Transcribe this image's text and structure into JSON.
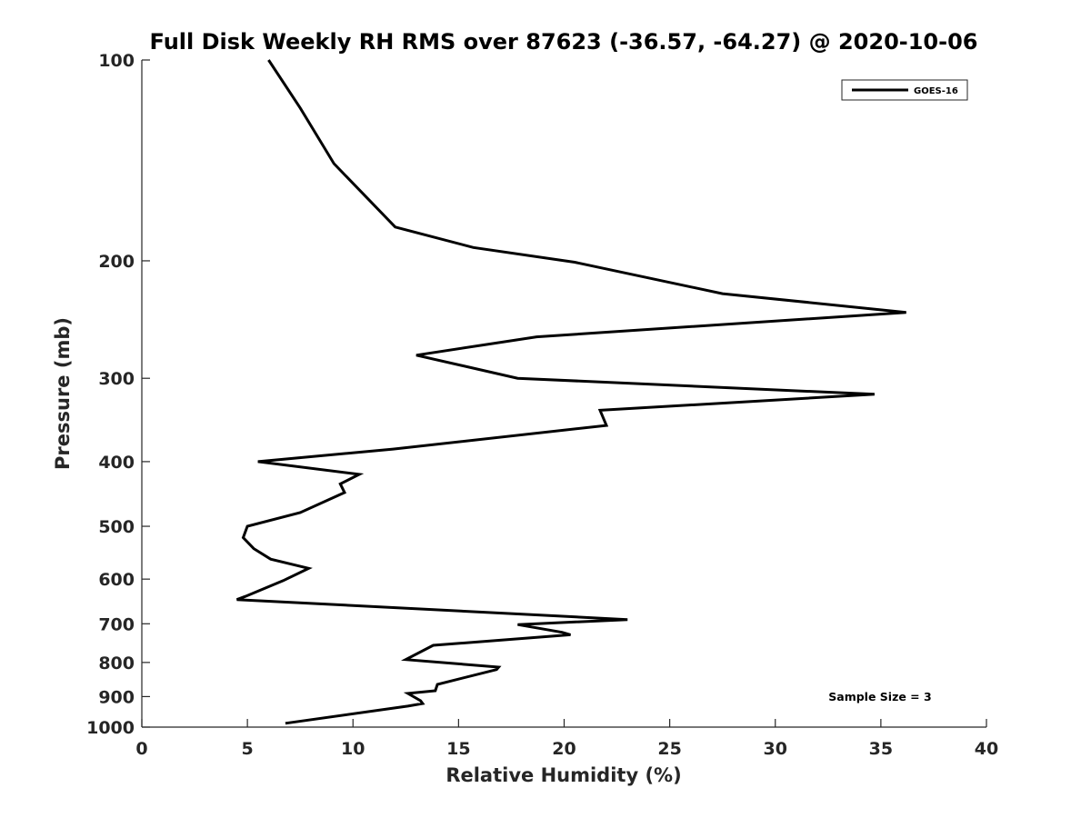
{
  "chart_data": {
    "type": "line",
    "title": "Full Disk Weekly RH RMS over 87623 (-36.57, -64.27) @ 2020-10-06",
    "xlabel": "Relative Humidity (%)",
    "ylabel": "Pressure (mb)",
    "xlim": [
      0,
      40
    ],
    "ylim": [
      100,
      1000
    ],
    "y_scale": "log",
    "y_reversed": true,
    "x_ticks": [
      0,
      5,
      10,
      15,
      20,
      25,
      30,
      35,
      40
    ],
    "y_ticks": [
      100,
      200,
      300,
      400,
      500,
      600,
      700,
      800,
      900,
      1000
    ],
    "grid": false,
    "legend_position": "top-right",
    "annotation": "Sample Size = 3",
    "series": [
      {
        "name": "GOES-16",
        "color": "#000000",
        "points": [
          [
            6.0,
            100
          ],
          [
            7.5,
            118
          ],
          [
            9.1,
            143
          ],
          [
            12.0,
            178
          ],
          [
            15.7,
            191
          ],
          [
            20.5,
            201
          ],
          [
            27.5,
            224
          ],
          [
            36.2,
            239
          ],
          [
            18.7,
            260
          ],
          [
            13.0,
            277
          ],
          [
            17.8,
            300
          ],
          [
            34.7,
            317
          ],
          [
            21.7,
            335
          ],
          [
            22.0,
            353
          ],
          [
            11.9,
            383
          ],
          [
            5.5,
            400
          ],
          [
            10.3,
            418
          ],
          [
            9.4,
            432
          ],
          [
            9.6,
            445
          ],
          [
            7.5,
            477
          ],
          [
            5.0,
            500
          ],
          [
            4.8,
            520
          ],
          [
            5.3,
            540
          ],
          [
            6.1,
            560
          ],
          [
            7.9,
            578
          ],
          [
            6.7,
            603
          ],
          [
            4.9,
            637
          ],
          [
            4.5,
            644
          ],
          [
            23.0,
            690
          ],
          [
            17.8,
            702
          ],
          [
            19.9,
            721
          ],
          [
            20.3,
            727
          ],
          [
            13.8,
            754
          ],
          [
            12.5,
            792
          ],
          [
            16.9,
            813
          ],
          [
            16.8,
            820
          ],
          [
            14.0,
            863
          ],
          [
            13.9,
            882
          ],
          [
            12.6,
            890
          ],
          [
            13.2,
            913
          ],
          [
            13.3,
            922
          ],
          [
            12.6,
            930
          ],
          [
            6.8,
            987
          ]
        ]
      }
    ]
  }
}
